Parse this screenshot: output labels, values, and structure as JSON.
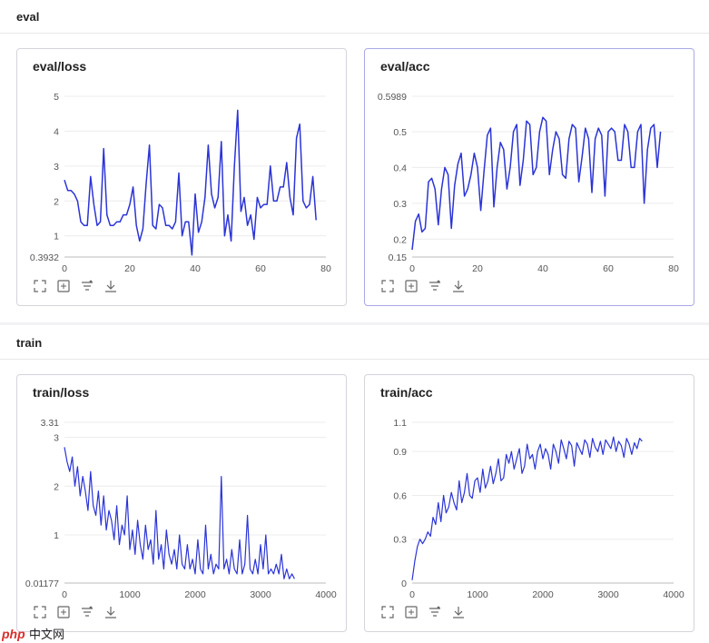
{
  "sections": [
    {
      "title": "eval"
    },
    {
      "title": "train"
    }
  ],
  "toolbar_icons": [
    "fullscreen-icon",
    "fit-view-icon",
    "filter-icon",
    "download-icon"
  ],
  "line_color": "#2b34d6",
  "watermark": {
    "text": "中文网",
    "logo": "php"
  },
  "chart_data": [
    {
      "type": "line",
      "title": "eval/loss",
      "xlim": [
        0,
        80
      ],
      "ylim": [
        0.3932,
        5
      ],
      "x_ticks": [
        "0",
        "20",
        "40",
        "60",
        "80"
      ],
      "y_ticks": [
        "0.3932",
        "1",
        "2",
        "3",
        "4",
        "5"
      ],
      "x": [
        0,
        1,
        2,
        3,
        4,
        5,
        6,
        7,
        8,
        9,
        10,
        11,
        12,
        13,
        14,
        15,
        16,
        17,
        18,
        19,
        20,
        21,
        22,
        23,
        24,
        25,
        26,
        27,
        28,
        29,
        30,
        31,
        32,
        33,
        34,
        35,
        36,
        37,
        38,
        39,
        40,
        41,
        42,
        43,
        44,
        45,
        46,
        47,
        48,
        49,
        50,
        51,
        52,
        53,
        54,
        55,
        56,
        57,
        58,
        59,
        60,
        61,
        62,
        63,
        64,
        65,
        66,
        67,
        68,
        69,
        70,
        71,
        72,
        73,
        74,
        75,
        76,
        77
      ],
      "y": [
        2.6,
        2.3,
        2.3,
        2.2,
        2.0,
        1.4,
        1.3,
        1.3,
        2.7,
        1.9,
        1.3,
        1.4,
        3.5,
        1.6,
        1.3,
        1.3,
        1.4,
        1.4,
        1.6,
        1.6,
        1.9,
        2.4,
        1.3,
        0.85,
        1.2,
        2.5,
        3.6,
        1.3,
        1.2,
        1.9,
        1.8,
        1.3,
        1.3,
        1.2,
        1.4,
        2.8,
        1.0,
        1.4,
        1.4,
        0.45,
        2.2,
        1.1,
        1.4,
        2.1,
        3.6,
        2.2,
        1.8,
        2.1,
        3.7,
        1.0,
        1.6,
        0.85,
        3.0,
        4.6,
        1.7,
        2.1,
        1.3,
        1.6,
        0.9,
        2.1,
        1.8,
        1.9,
        1.9,
        3.0,
        2.0,
        2.0,
        2.4,
        2.4,
        3.1,
        2.1,
        1.6,
        3.8,
        4.2,
        2.0,
        1.8,
        1.9,
        2.7,
        1.45
      ],
      "xlabel": "",
      "ylabel": ""
    },
    {
      "type": "line",
      "title": "eval/acc",
      "xlim": [
        0,
        80
      ],
      "ylim": [
        0.15,
        0.5989
      ],
      "x_ticks": [
        "0",
        "20",
        "40",
        "60",
        "80"
      ],
      "y_ticks": [
        "0.15",
        "0.2",
        "0.3",
        "0.4",
        "0.5",
        "0.5989"
      ],
      "x": [
        0,
        1,
        2,
        3,
        4,
        5,
        6,
        7,
        8,
        9,
        10,
        11,
        12,
        13,
        14,
        15,
        16,
        17,
        18,
        19,
        20,
        21,
        22,
        23,
        24,
        25,
        26,
        27,
        28,
        29,
        30,
        31,
        32,
        33,
        34,
        35,
        36,
        37,
        38,
        39,
        40,
        41,
        42,
        43,
        44,
        45,
        46,
        47,
        48,
        49,
        50,
        51,
        52,
        53,
        54,
        55,
        56,
        57,
        58,
        59,
        60,
        61,
        62,
        63,
        64,
        65,
        66,
        67,
        68,
        69,
        70,
        71,
        72,
        73,
        74,
        75,
        76
      ],
      "y": [
        0.17,
        0.25,
        0.27,
        0.22,
        0.23,
        0.36,
        0.37,
        0.34,
        0.24,
        0.34,
        0.4,
        0.38,
        0.23,
        0.35,
        0.41,
        0.44,
        0.32,
        0.34,
        0.38,
        0.44,
        0.4,
        0.28,
        0.39,
        0.49,
        0.51,
        0.29,
        0.4,
        0.47,
        0.45,
        0.34,
        0.4,
        0.5,
        0.52,
        0.35,
        0.42,
        0.53,
        0.52,
        0.38,
        0.4,
        0.5,
        0.54,
        0.53,
        0.38,
        0.45,
        0.5,
        0.48,
        0.38,
        0.37,
        0.48,
        0.52,
        0.51,
        0.36,
        0.43,
        0.51,
        0.48,
        0.33,
        0.48,
        0.51,
        0.49,
        0.32,
        0.5,
        0.51,
        0.5,
        0.42,
        0.42,
        0.52,
        0.5,
        0.4,
        0.4,
        0.5,
        0.52,
        0.3,
        0.45,
        0.51,
        0.52,
        0.4,
        0.5
      ],
      "xlabel": "",
      "ylabel": ""
    },
    {
      "type": "line",
      "title": "train/loss",
      "xlim": [
        0,
        4000
      ],
      "ylim": [
        0.01177,
        3.31
      ],
      "x_ticks": [
        "0",
        "1000",
        "2000",
        "3000",
        "4000"
      ],
      "y_ticks": [
        "0.01177",
        "1",
        "2",
        "3",
        "3.31"
      ],
      "x": [
        0,
        40,
        80,
        120,
        160,
        200,
        240,
        280,
        320,
        360,
        400,
        440,
        480,
        520,
        560,
        600,
        640,
        680,
        720,
        760,
        800,
        840,
        880,
        920,
        960,
        1000,
        1040,
        1080,
        1120,
        1160,
        1200,
        1240,
        1280,
        1320,
        1360,
        1400,
        1440,
        1480,
        1520,
        1560,
        1600,
        1640,
        1680,
        1720,
        1760,
        1800,
        1840,
        1880,
        1920,
        1960,
        2000,
        2040,
        2080,
        2120,
        2160,
        2200,
        2240,
        2280,
        2320,
        2360,
        2400,
        2440,
        2480,
        2520,
        2560,
        2600,
        2640,
        2680,
        2720,
        2760,
        2800,
        2840,
        2880,
        2920,
        2960,
        3000,
        3040,
        3080,
        3120,
        3160,
        3200,
        3240,
        3280,
        3320,
        3360,
        3400,
        3440,
        3480,
        3520
      ],
      "y": [
        2.8,
        2.5,
        2.3,
        2.6,
        2.0,
        2.4,
        1.8,
        2.2,
        1.9,
        1.5,
        2.3,
        1.6,
        1.4,
        1.9,
        1.2,
        1.8,
        1.1,
        1.5,
        1.3,
        0.9,
        1.6,
        0.8,
        1.2,
        1.0,
        1.8,
        0.7,
        1.1,
        0.6,
        1.3,
        0.8,
        0.5,
        1.2,
        0.7,
        0.9,
        0.4,
        1.5,
        0.5,
        0.8,
        0.3,
        1.1,
        0.6,
        0.4,
        0.7,
        0.3,
        1.0,
        0.4,
        0.3,
        0.8,
        0.3,
        0.5,
        0.2,
        0.9,
        0.3,
        0.2,
        1.2,
        0.3,
        0.6,
        0.2,
        0.4,
        0.3,
        2.2,
        0.3,
        0.5,
        0.2,
        0.7,
        0.3,
        0.2,
        0.9,
        0.2,
        0.4,
        1.4,
        0.3,
        0.2,
        0.5,
        0.2,
        0.8,
        0.3,
        1.0,
        0.2,
        0.3,
        0.2,
        0.4,
        0.2,
        0.6,
        0.1,
        0.3,
        0.1,
        0.2,
        0.1
      ],
      "xlabel": "",
      "ylabel": ""
    },
    {
      "type": "line",
      "title": "train/acc",
      "xlim": [
        0,
        4000
      ],
      "ylim": [
        0,
        1.1
      ],
      "x_ticks": [
        "0",
        "1000",
        "2000",
        "3000",
        "4000"
      ],
      "y_ticks": [
        "0",
        "0.3",
        "0.6",
        "0.9",
        "1.1"
      ],
      "x": [
        0,
        40,
        80,
        120,
        160,
        200,
        240,
        280,
        320,
        360,
        400,
        440,
        480,
        520,
        560,
        600,
        640,
        680,
        720,
        760,
        800,
        840,
        880,
        920,
        960,
        1000,
        1040,
        1080,
        1120,
        1160,
        1200,
        1240,
        1280,
        1320,
        1360,
        1400,
        1440,
        1480,
        1520,
        1560,
        1600,
        1640,
        1680,
        1720,
        1760,
        1800,
        1840,
        1880,
        1920,
        1960,
        2000,
        2040,
        2080,
        2120,
        2160,
        2200,
        2240,
        2280,
        2320,
        2360,
        2400,
        2440,
        2480,
        2520,
        2560,
        2600,
        2640,
        2680,
        2720,
        2760,
        2800,
        2840,
        2880,
        2920,
        2960,
        3000,
        3040,
        3080,
        3120,
        3160,
        3200,
        3240,
        3280,
        3320,
        3360,
        3400,
        3440,
        3480,
        3520
      ],
      "y": [
        0.02,
        0.15,
        0.25,
        0.3,
        0.27,
        0.3,
        0.35,
        0.32,
        0.45,
        0.4,
        0.55,
        0.42,
        0.6,
        0.48,
        0.52,
        0.62,
        0.55,
        0.5,
        0.7,
        0.55,
        0.62,
        0.75,
        0.6,
        0.58,
        0.7,
        0.72,
        0.62,
        0.78,
        0.65,
        0.7,
        0.8,
        0.68,
        0.75,
        0.85,
        0.7,
        0.72,
        0.88,
        0.82,
        0.9,
        0.78,
        0.85,
        0.92,
        0.75,
        0.8,
        0.95,
        0.85,
        0.88,
        0.78,
        0.9,
        0.95,
        0.85,
        0.92,
        0.88,
        0.78,
        0.95,
        0.9,
        0.82,
        0.98,
        0.92,
        0.85,
        0.97,
        0.94,
        0.8,
        0.96,
        0.92,
        0.88,
        0.98,
        0.95,
        0.86,
        0.99,
        0.93,
        0.9,
        0.97,
        0.88,
        0.98,
        0.95,
        0.92,
        1.0,
        0.9,
        0.97,
        0.94,
        0.86,
        0.99,
        0.95,
        0.88,
        0.96,
        0.92,
        0.99,
        0.97
      ],
      "xlabel": "",
      "ylabel": ""
    }
  ]
}
